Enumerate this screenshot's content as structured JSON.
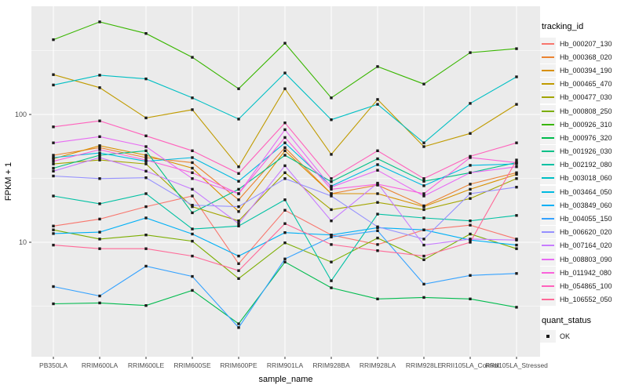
{
  "figure": {
    "background": "#FFFFFF",
    "panel_bg": "#EBEBEB",
    "grid_color": "#FFFFFF",
    "axis_text_color": "#4D4D4D",
    "tick_color": "#333333",
    "point_color": "#1A1A1A"
  },
  "axes": {
    "xlabel": "sample_name",
    "ylabel": "FPKM + 1"
  },
  "legend": {
    "title": "tracking_id",
    "quant_title": "quant_status",
    "quant_items": [
      {
        "label": "OK",
        "shape": "filled-square"
      }
    ]
  },
  "chart_data": {
    "type": "line",
    "title": "",
    "xlabel": "sample_name",
    "ylabel": "FPKM + 1",
    "legend_position": "right",
    "grid": true,
    "point_shape": "filled-square-black",
    "y_axis": {
      "scale": "log10",
      "ticks": [
        100,
        10
      ],
      "minor_breaks": [
        316.2,
        31.62,
        3.162
      ],
      "range_approx": [
        1.3,
        700
      ]
    },
    "x_categories": [
      "PB350LA",
      "RRIM600LA",
      "RRIM600LE",
      "RRIM600SE",
      "RRIM600PE",
      "RRIM901LA",
      "RRIM928BA",
      "RRIM928LA",
      "RRIM928LE",
      "RRII105LA_Control",
      "RRII105LA_Stressed"
    ],
    "series": [
      {
        "name": "Hb_000207_130",
        "color": "#F8766D",
        "values": [
          13.4,
          15.2,
          19,
          23,
          6.8,
          17.8,
          11.4,
          9.6,
          12.5,
          13.6,
          10.6
        ]
      },
      {
        "name": "Hb_000368_020",
        "color": "#EA8331",
        "values": [
          48,
          55,
          46,
          42,
          21.5,
          55,
          24,
          28,
          19.3,
          28.5,
          35
        ]
      },
      {
        "name": "Hb_000394_190",
        "color": "#D89000",
        "values": [
          45,
          57,
          48,
          38,
          17.4,
          52,
          24,
          24,
          19,
          26,
          34
        ]
      },
      {
        "name": "Hb_000465_470",
        "color": "#C09B00",
        "values": [
          205,
          162,
          94,
          109,
          39,
          159,
          48.7,
          131,
          56,
          71,
          120
        ]
      },
      {
        "name": "Hb_000477_030",
        "color": "#A3A500",
        "values": [
          41,
          44,
          41,
          19,
          14.7,
          35,
          18,
          20.5,
          18,
          22,
          31.5
        ]
      },
      {
        "name": "Hb_000808_250",
        "color": "#7CAE00",
        "values": [
          12.5,
          10.6,
          11.4,
          10.2,
          5.2,
          9.9,
          7,
          10.8,
          7.3,
          11.6,
          8.9
        ]
      },
      {
        "name": "Hb_000926_310",
        "color": "#39B600",
        "values": [
          385,
          530,
          430,
          280,
          159,
          361,
          135,
          237,
          173,
          305,
          327
        ]
      },
      {
        "name": "Hb_000976_320",
        "color": "#00BB4E",
        "values": [
          3.3,
          3.35,
          3.2,
          4.2,
          2.3,
          7,
          4.4,
          3.6,
          3.7,
          3.6,
          3.1
        ]
      },
      {
        "name": "Hb_001926_030",
        "color": "#00C087",
        "values": [
          38,
          48,
          52,
          17,
          26,
          48,
          29.8,
          45,
          30,
          35,
          42
        ]
      },
      {
        "name": "Hb_002192_080",
        "color": "#00C1A3",
        "values": [
          23,
          20,
          24,
          12.7,
          13.4,
          21.5,
          5,
          16.6,
          15.5,
          14.7,
          16.2
        ]
      },
      {
        "name": "Hb_003018_060",
        "color": "#00BFC4",
        "values": [
          170,
          203,
          190,
          135,
          92,
          211,
          91,
          120,
          60,
          122,
          197
        ]
      },
      {
        "name": "Hb_003464_050",
        "color": "#00BAE0",
        "values": [
          46,
          50,
          43,
          46,
          30,
          60,
          27.5,
          40.5,
          27.7,
          40,
          41
        ]
      },
      {
        "name": "Hb_003849_060",
        "color": "#00B0F6",
        "values": [
          11.7,
          12,
          15.5,
          11.6,
          7.8,
          11.9,
          11.4,
          13,
          12.5,
          10.4,
          9.5
        ]
      },
      {
        "name": "Hb_004055_150",
        "color": "#35A2FF",
        "values": [
          4.5,
          3.8,
          6.5,
          5.4,
          2.15,
          7.4,
          11,
          12.3,
          4.7,
          5.5,
          5.7
        ]
      },
      {
        "name": "Hb_006620_020",
        "color": "#9590FF",
        "values": [
          33,
          31.5,
          32,
          19.5,
          19,
          31.5,
          23,
          13.2,
          10.6,
          24,
          27
        ]
      },
      {
        "name": "Hb_007164_020",
        "color": "#C77CFF",
        "values": [
          36,
          46,
          36,
          26,
          14,
          39.7,
          14.7,
          29,
          9.5,
          10.6,
          10.4
        ]
      },
      {
        "name": "Hb_008803_090",
        "color": "#E76BF3",
        "values": [
          60,
          67,
          56,
          31.5,
          24,
          76,
          27,
          36.6,
          23,
          35,
          39
        ]
      },
      {
        "name": "Hb_011942_080",
        "color": "#FA62DB",
        "values": [
          43,
          53,
          44,
          35,
          24,
          66,
          26,
          28.5,
          24,
          46,
          42
        ]
      },
      {
        "name": "Hb_054865_100",
        "color": "#FF62BC",
        "values": [
          80,
          89,
          68,
          52,
          34.5,
          86,
          31.5,
          52,
          31.5,
          47,
          60
        ]
      },
      {
        "name": "Hb_106552_050",
        "color": "#FF6A98",
        "values": [
          9.5,
          8.9,
          8.9,
          7.8,
          6,
          14,
          9.6,
          8.6,
          7.8,
          10,
          44
        ]
      }
    ]
  }
}
